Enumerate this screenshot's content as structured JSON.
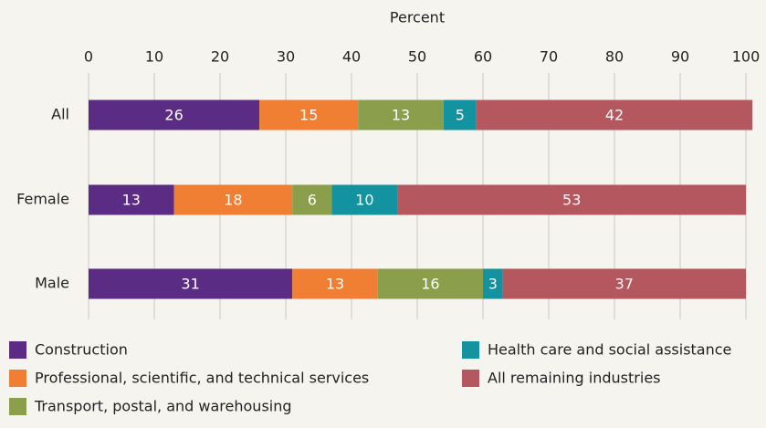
{
  "chart_data": {
    "type": "stacked-bar-horizontal",
    "x_label": "Percent",
    "categories": [
      "All",
      "Female",
      "Male"
    ],
    "series": [
      {
        "name": "Construction",
        "color": "#5b2c83",
        "values": [
          26,
          13,
          31
        ]
      },
      {
        "name": "Professional, scientific, and technical services",
        "color": "#f07f33",
        "values": [
          15,
          18,
          13
        ]
      },
      {
        "name": "Transport, postal, and warehousing",
        "color": "#8b9e4b",
        "values": [
          13,
          6,
          16
        ]
      },
      {
        "name": "Health care and social assistance",
        "color": "#12939f",
        "values": [
          5,
          10,
          3
        ]
      },
      {
        "name": "All remaining industries",
        "color": "#b5575f",
        "values": [
          42,
          53,
          37
        ]
      }
    ],
    "xlim": [
      0,
      100
    ],
    "xticks": [
      0,
      10,
      20,
      30,
      40,
      50,
      60,
      70,
      80,
      90,
      100
    ],
    "grid": true
  }
}
